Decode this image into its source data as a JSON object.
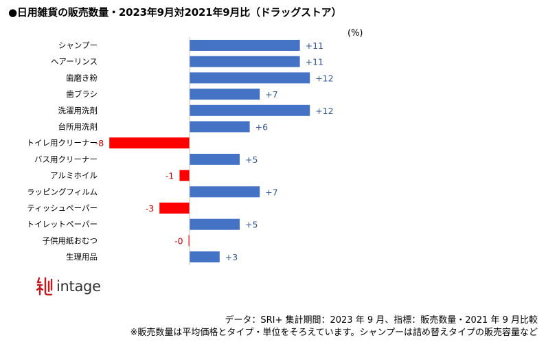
{
  "title": "●日用雑貨の販売数量・2023年9月対2021年9月比（ドラッグストア）",
  "brand": {
    "name": "intage",
    "color": "#c8161d"
  },
  "footnotes": {
    "line1": "データ：SRI+  集計期間：2023 年 9 月、指標：販売数量・2021 年 9 月比較",
    "line2": "※販売数量は平均価格とタイプ・単位をそろえています。シャンプーは詰め替えタイプの販売容量など"
  },
  "colors": {
    "positive": "#4472c4",
    "negative": "#ff0000",
    "negative_label": "#c00000",
    "positive_label": "#2f5597"
  },
  "chart_data": {
    "type": "bar",
    "orientation": "horizontal",
    "unit_label": "(%)",
    "categories": [
      "シャンプー",
      "ヘアーリンス",
      "歯磨き粉",
      "歯ブラシ",
      "洗濯用洗剤",
      "台所用洗剤",
      "トイレ用クリーナー",
      "バス用クリーナー",
      "アルミホイル",
      "ラッピングフィルム",
      "ティッシュペーパー",
      "トイレットペーパー",
      "子供用紙おむつ",
      "生理用品"
    ],
    "values": [
      11,
      11,
      12,
      7,
      12,
      6,
      -8,
      5,
      -1,
      7,
      -3,
      5,
      -0.1,
      3
    ],
    "value_labels": [
      "+11",
      "+11",
      "+12",
      "+7",
      "+12",
      "+6",
      "-8",
      "+5",
      "-1",
      "+7",
      "-3",
      "+5",
      "-0",
      "+3"
    ],
    "xlim": [
      -8.5,
      12.5
    ]
  }
}
